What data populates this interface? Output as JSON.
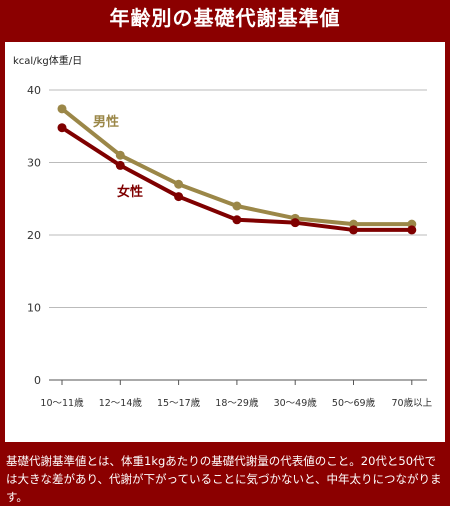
{
  "title": "年齢別の基礎代謝基準値",
  "caption": "基礎代謝基準値とは、体重1kgあたりの基礎代謝量の代表値のこと。20代と50代では大きな差があり、代謝が下がっていることに気づかないと、中年太りにつながります。",
  "chart_data": {
    "type": "line",
    "unit_label": "kcal/kg体重/日",
    "categories": [
      "10〜11歳",
      "12〜14歳",
      "15〜17歳",
      "18〜29歳",
      "30〜49歳",
      "50〜69歳",
      "70歳以上"
    ],
    "ylim": [
      0,
      40
    ],
    "yticks": [
      0,
      10,
      20,
      30,
      40
    ],
    "grid": true,
    "series": [
      {
        "name": "男性",
        "color": "#9b8748",
        "values": [
          37.4,
          31.0,
          27.0,
          24.0,
          22.3,
          21.5,
          21.5
        ]
      },
      {
        "name": "女性",
        "color": "#7f0000",
        "values": [
          34.8,
          29.6,
          25.3,
          22.1,
          21.7,
          20.7,
          20.7
        ]
      }
    ]
  }
}
